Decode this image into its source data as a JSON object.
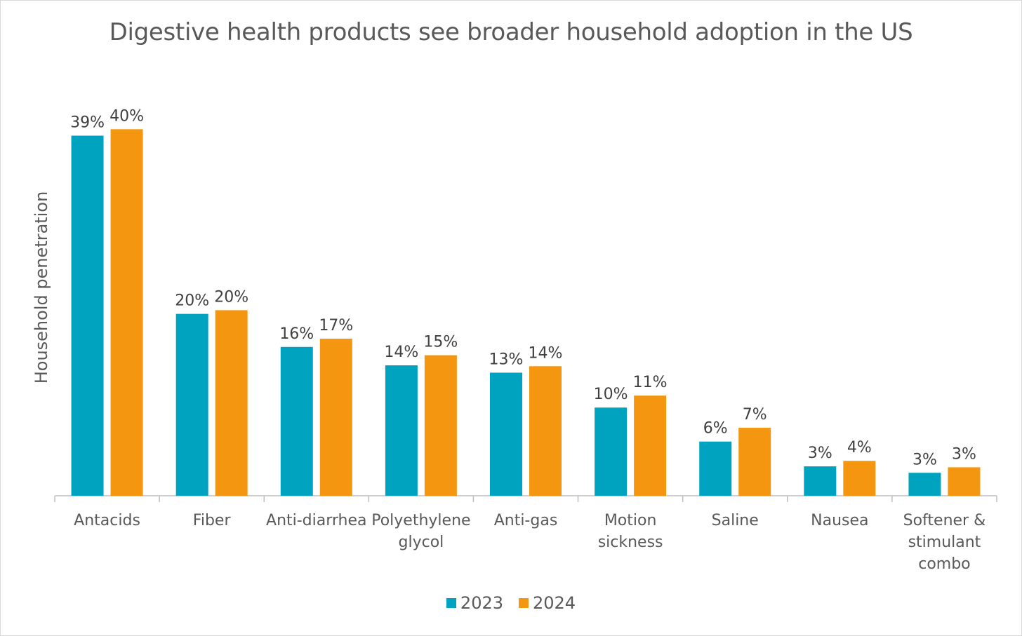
{
  "chart_data": {
    "type": "bar",
    "title": "Digestive health products see broader household adoption in the US",
    "xlabel": "",
    "ylabel": "Household penetration",
    "ylim": [
      0,
      42
    ],
    "grid": false,
    "legend_position": "bottom",
    "categories": [
      [
        "Antacids"
      ],
      [
        "Fiber"
      ],
      [
        "Anti-diarrhea"
      ],
      [
        "Polyethylene",
        "glycol"
      ],
      [
        "Anti-gas"
      ],
      [
        "Motion",
        "sickness"
      ],
      [
        "Saline"
      ],
      [
        "Nausea"
      ],
      [
        "Softener &",
        "stimulant",
        "combo"
      ]
    ],
    "series": [
      {
        "name": "2023",
        "color": "#00A3BF",
        "values": [
          39.2,
          19.8,
          16.2,
          14.2,
          13.4,
          9.6,
          5.9,
          3.2,
          2.5
        ],
        "labels": [
          "39%",
          "20%",
          "16%",
          "14%",
          "13%",
          "10%",
          "6%",
          "3%",
          "3%"
        ]
      },
      {
        "name": "2024",
        "color": "#F4960F",
        "values": [
          39.9,
          20.2,
          17.1,
          15.3,
          14.1,
          10.9,
          7.4,
          3.8,
          3.1
        ],
        "labels": [
          "40%",
          "20%",
          "17%",
          "15%",
          "14%",
          "11%",
          "7%",
          "4%",
          "3%"
        ]
      }
    ]
  },
  "colors": {
    "text": "#595959",
    "axis": "#bfbfbf"
  }
}
